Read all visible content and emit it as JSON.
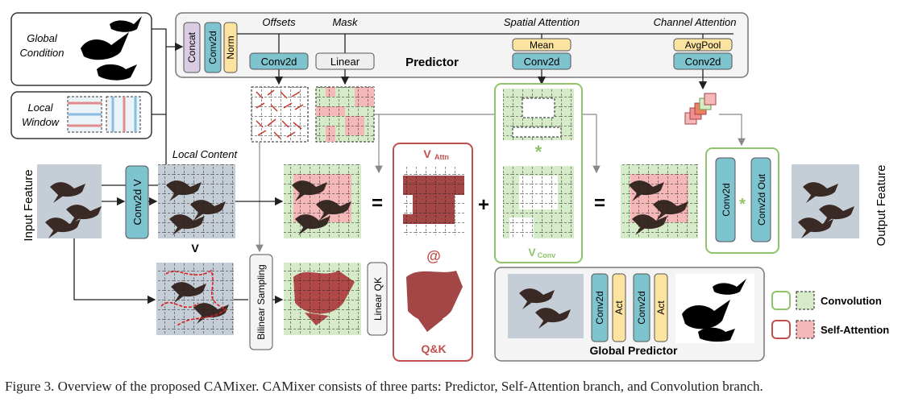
{
  "predictor": {
    "title": "Predictor",
    "concat": "Concat",
    "conv2d": "Conv2d",
    "norm": "Norm",
    "offsets_label": "Offsets",
    "mask_label": "Mask",
    "spatial_label": "Spatial Attention",
    "channel_label": "Channel Attention",
    "offsets_block": "Conv2d",
    "mask_block": "Linear",
    "mean": "Mean",
    "spatial_block": "Conv2d",
    "avgpool": "AvgPool",
    "channel_block": "Conv2d"
  },
  "inputs": {
    "global_condition": [
      "Global",
      "Condition"
    ],
    "local_window": [
      "Local",
      "Window"
    ],
    "local_content": "Local Content",
    "input_feature": "Input Feature",
    "output_feature": "Output Feature",
    "conv2d_v": "Conv2d V",
    "v_label": "V",
    "bilinear": "Bilinear Sampling",
    "linear_qk": "Linear QK"
  },
  "attention_branch": {
    "v_attn_main": "V",
    "v_attn_sub": "Attn",
    "at": "@",
    "qk": "Q&K"
  },
  "conv_branch": {
    "v_conv_main": "V",
    "v_conv_sub": "Conv",
    "star": "*"
  },
  "operators": {
    "eq1": "=",
    "plus": "+",
    "eq2": "=",
    "star2": "*"
  },
  "output_block": {
    "conv2d": "Conv2d",
    "conv2d_out": "Conv2d Out"
  },
  "global_predictor": {
    "title": "Global Predictor",
    "conv1": "Conv2d",
    "act1": "Act",
    "conv2": "Conv2d",
    "act2": "Act"
  },
  "legend": {
    "convolution": "Convolution",
    "self_attention": "Self-Attention"
  },
  "colors": {
    "concat": "#d9cce3",
    "conv": "#7ec4cf",
    "norm": "#fde3a0",
    "green": "#8fc46a",
    "green_fill": "#d6ebc8",
    "red": "#c0504d",
    "red_fill": "#f5b8b8",
    "goose_sky": "#c5ced6",
    "goose_dark": "#3a2a25"
  },
  "caption": "Figure 3. Overview of the proposed CAMixer. CAMixer consists of three parts: Predictor, Self-Attention branch, and Convolution branch."
}
